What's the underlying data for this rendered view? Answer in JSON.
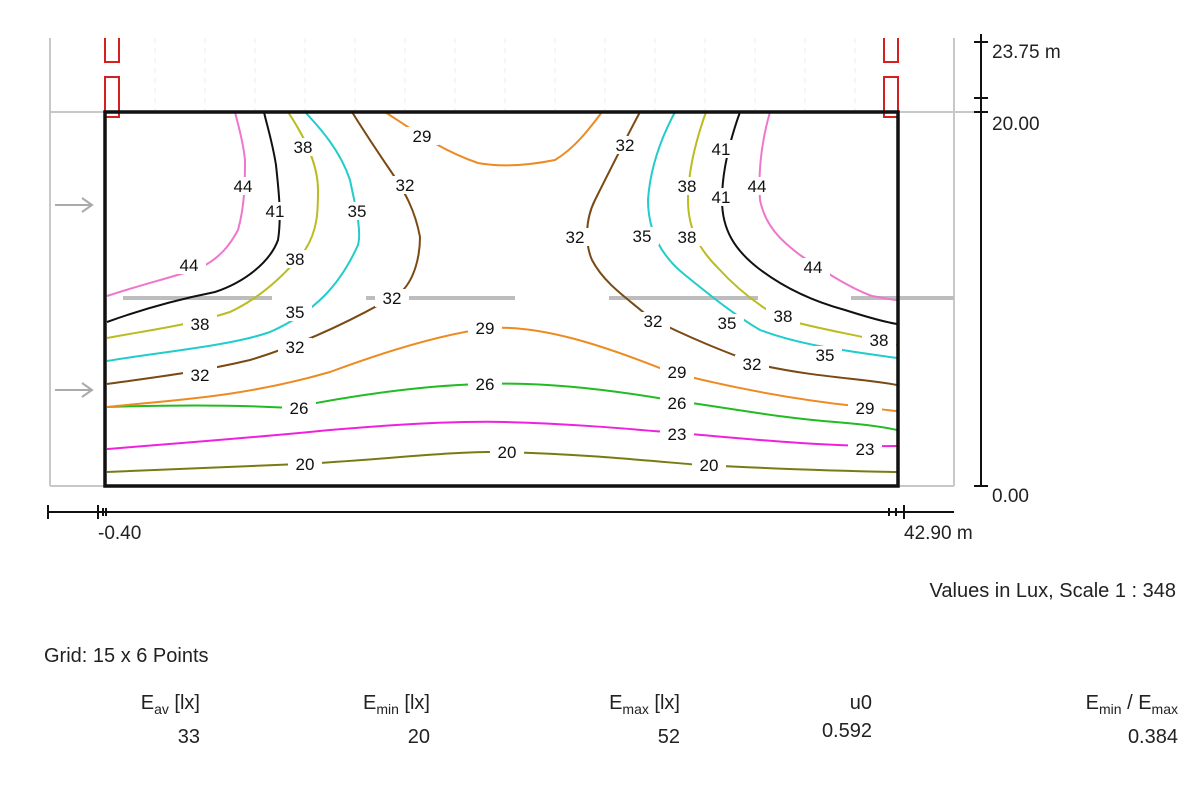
{
  "plot": {
    "y_labels": [
      "23.75 m",
      "20.00",
      "0.00"
    ],
    "x_labels": [
      "-0.40",
      "42.90 m"
    ],
    "contours": [
      {
        "level": 44,
        "color": "#ee77cc"
      },
      {
        "level": 41,
        "color": "#111111"
      },
      {
        "level": 38,
        "color": "#bbbb22"
      },
      {
        "level": 35,
        "color": "#22cccc"
      },
      {
        "level": 32,
        "color": "#7a4a14"
      },
      {
        "level": 29,
        "color": "#ee8a22"
      },
      {
        "level": 26,
        "color": "#22bb22"
      },
      {
        "level": 23,
        "color": "#ee22dd"
      },
      {
        "level": 20,
        "color": "#7a7a14"
      }
    ]
  },
  "scale_note": "Values in Lux, Scale 1 : 348",
  "grid_info": "Grid: 15 x 6 Points",
  "stats": {
    "eav": {
      "sym": "E",
      "sub": "av",
      "unit": " [lx]",
      "value": "33"
    },
    "emin": {
      "sym": "E",
      "sub": "min",
      "unit": " [lx]",
      "value": "20"
    },
    "emax": {
      "sym": "E",
      "sub": "max",
      "unit": " [lx]",
      "value": "52"
    },
    "u0": {
      "label": "u0",
      "value": "0.592"
    },
    "ratio": {
      "sym": "E",
      "sub": "min",
      "sep": " / E",
      "sub2": "max",
      "value": "0.384"
    }
  }
}
